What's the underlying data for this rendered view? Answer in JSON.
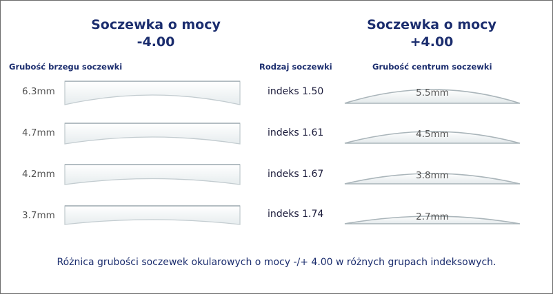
{
  "titles": {
    "negative": {
      "line1": "Soczewka o mocy",
      "line2": "-4.00"
    },
    "positive": {
      "line1": "Soczewka o mocy",
      "line2": "+4.00"
    }
  },
  "headers": {
    "edge_thickness": "Grubość brzegu soczewki",
    "lens_type": "Rodzaj soczewki",
    "center_thickness": "Grubość centrum soczewki"
  },
  "rows": [
    {
      "edge": "6.3mm",
      "index": "indeks 1.50",
      "center": "5.5mm"
    },
    {
      "edge": "4.7mm",
      "index": "indeks 1.61",
      "center": "4.5mm"
    },
    {
      "edge": "4.2mm",
      "index": "indeks 1.67",
      "center": "3.8mm"
    },
    {
      "edge": "3.7mm",
      "index": "indeks 1.74",
      "center": "2.7mm"
    }
  ],
  "caption": "Różnica grubości soczewek okularowych o mocy -/+ 4.00 w różnych grupach indeksowych.",
  "colors": {
    "title": "#1b2d6e",
    "lens_fill": "#f2f6f7",
    "lens_edge": "#b9c4c9"
  }
}
